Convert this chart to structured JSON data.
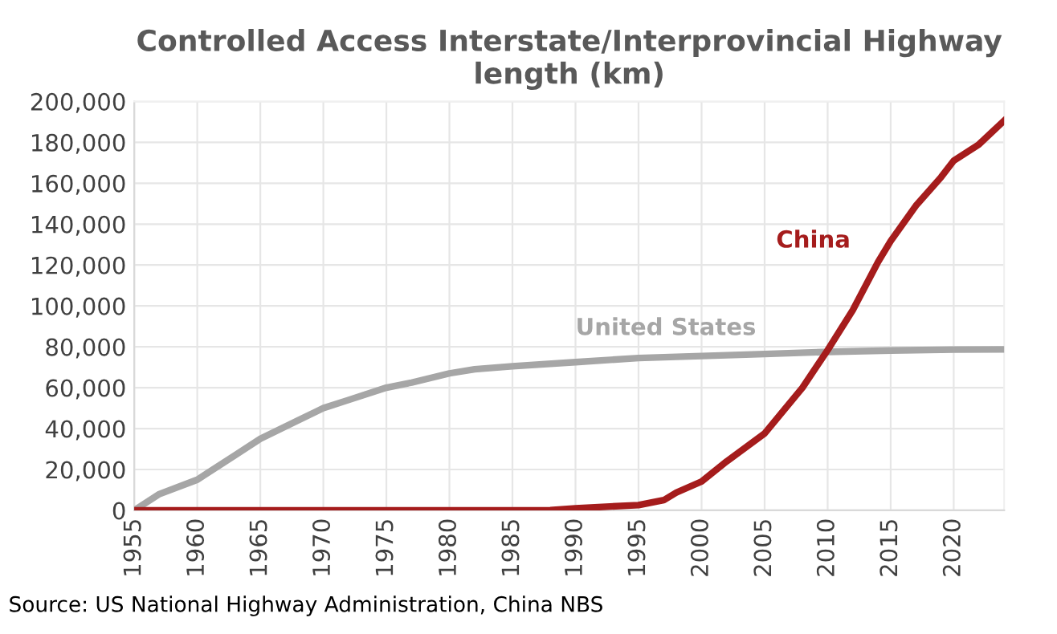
{
  "chart_data": {
    "type": "line",
    "title": "Controlled Access Interstate/Interprovincial Highway\nlength (km)",
    "xlim": [
      1955,
      2024
    ],
    "xticks": [
      1955,
      1960,
      1965,
      1970,
      1975,
      1980,
      1985,
      1990,
      1995,
      2000,
      2005,
      2010,
      2015,
      2020
    ],
    "ylim": [
      0,
      200000
    ],
    "yticks": [
      {
        "value": 0,
        "label": "0"
      },
      {
        "value": 20000,
        "label": "20,000"
      },
      {
        "value": 40000,
        "label": "40,000"
      },
      {
        "value": 60000,
        "label": "60,000"
      },
      {
        "value": 80000,
        "label": "80,000"
      },
      {
        "value": 100000,
        "label": "100,000"
      },
      {
        "value": 120000,
        "label": "120,000"
      },
      {
        "value": 140000,
        "label": "140,000"
      },
      {
        "value": 160000,
        "label": "160,000"
      },
      {
        "value": 180000,
        "label": "180,000"
      },
      {
        "value": 200000,
        "label": "200,000"
      }
    ],
    "grid": true,
    "legend": false,
    "marker": "none",
    "line_style": "solid",
    "series": [
      {
        "name": "United States",
        "color": "#a6a6a6",
        "x": [
          1955,
          1957,
          1960,
          1963,
          1965,
          1968,
          1970,
          1972,
          1975,
          1977,
          1980,
          1982,
          1985,
          1990,
          1995,
          2000,
          2005,
          2010,
          2015,
          2020,
          2024
        ],
        "values": [
          0,
          8000,
          15000,
          27000,
          35000,
          44000,
          50000,
          54000,
          60000,
          62500,
          67000,
          69000,
          70500,
          72500,
          74500,
          75500,
          76500,
          77500,
          78200,
          78600,
          78700
        ]
      },
      {
        "name": "China",
        "color": "#a51c1c",
        "x": [
          1955,
          1985,
          1988,
          1990,
          1995,
          1997,
          1998,
          2000,
          2002,
          2005,
          2008,
          2010,
          2012,
          2014,
          2015,
          2017,
          2019,
          2020,
          2022,
          2024
        ],
        "values": [
          0,
          0,
          100,
          1000,
          2600,
          5000,
          8700,
          14100,
          24000,
          37600,
          60000,
          78400,
          98000,
          121500,
          131700,
          149000,
          163000,
          171000,
          179000,
          190600
        ]
      }
    ],
    "annotations": [
      "Source: US National Highway Administration, China NBS"
    ]
  }
}
